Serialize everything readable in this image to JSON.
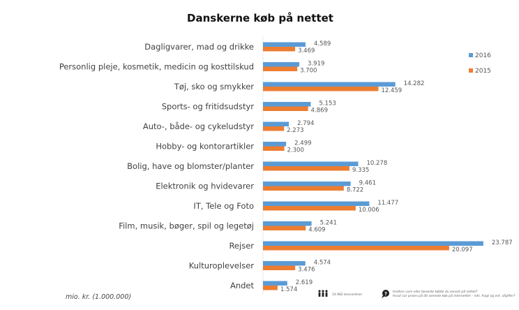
{
  "chart_data": {
    "type": "bar",
    "orientation": "horizontal",
    "title": "Danskerne køb på nettet",
    "unit_label": "mio. kr. (1.000.000)",
    "xlim": [
      0,
      24
    ],
    "grid": false,
    "legend_position": "right",
    "categories": [
      "Dagligvarer, mad og drikke",
      "Personlig pleje, kosmetik, medicin og kosttilskud",
      "Tøj, sko og smykker",
      "Sports- og fritidsudstyr",
      "Auto-, både- og cykeludstyr",
      "Hobby- og kontorartikler",
      "Bolig, have og blomster/planter",
      "Elektronik og hvidevarer",
      "IT, Tele og Foto",
      "Film, musik, bøger, spil og legetøj",
      "Rejser",
      "Kulturoplevelser",
      "Andet"
    ],
    "series": [
      {
        "name": "2016",
        "color": "#5b9bd5",
        "values": [
          4.589,
          3.919,
          14.282,
          5.153,
          2.794,
          2.499,
          10.278,
          9.461,
          11.477,
          5.241,
          23.787,
          4.574,
          2.619
        ],
        "labels": [
          "4.589",
          "3.919",
          "14.282",
          "5.153",
          "2.794",
          "2.499",
          "10.278",
          "9.461",
          "11.477",
          "5.241",
          "23.787",
          "4.574",
          "2.619"
        ]
      },
      {
        "name": "2015",
        "color": "#ed7d31",
        "values": [
          3.469,
          3.7,
          12.459,
          4.869,
          2.273,
          2.3,
          9.335,
          8.722,
          10.006,
          4.609,
          20.097,
          3.476,
          1.574
        ],
        "labels": [
          "3.469",
          "3.700",
          "12.459",
          "4.869",
          "2.273",
          "2.300",
          "9.335",
          "8.722",
          "10.006",
          "4.609",
          "20.097",
          "3.476",
          "1.574"
        ]
      }
    ]
  },
  "footer": {
    "respondents_icon": "people-icon",
    "respondents_text": "14.982 besvarelser",
    "question_icon": "question-bubble-icon",
    "question_line1": "Hvilken vare eller tjeneste købte du senest på nettet?",
    "question_line2": "Hvad var prisen på dit seneste køb på internettet – inkl. fragt og evt. afgifter?"
  }
}
